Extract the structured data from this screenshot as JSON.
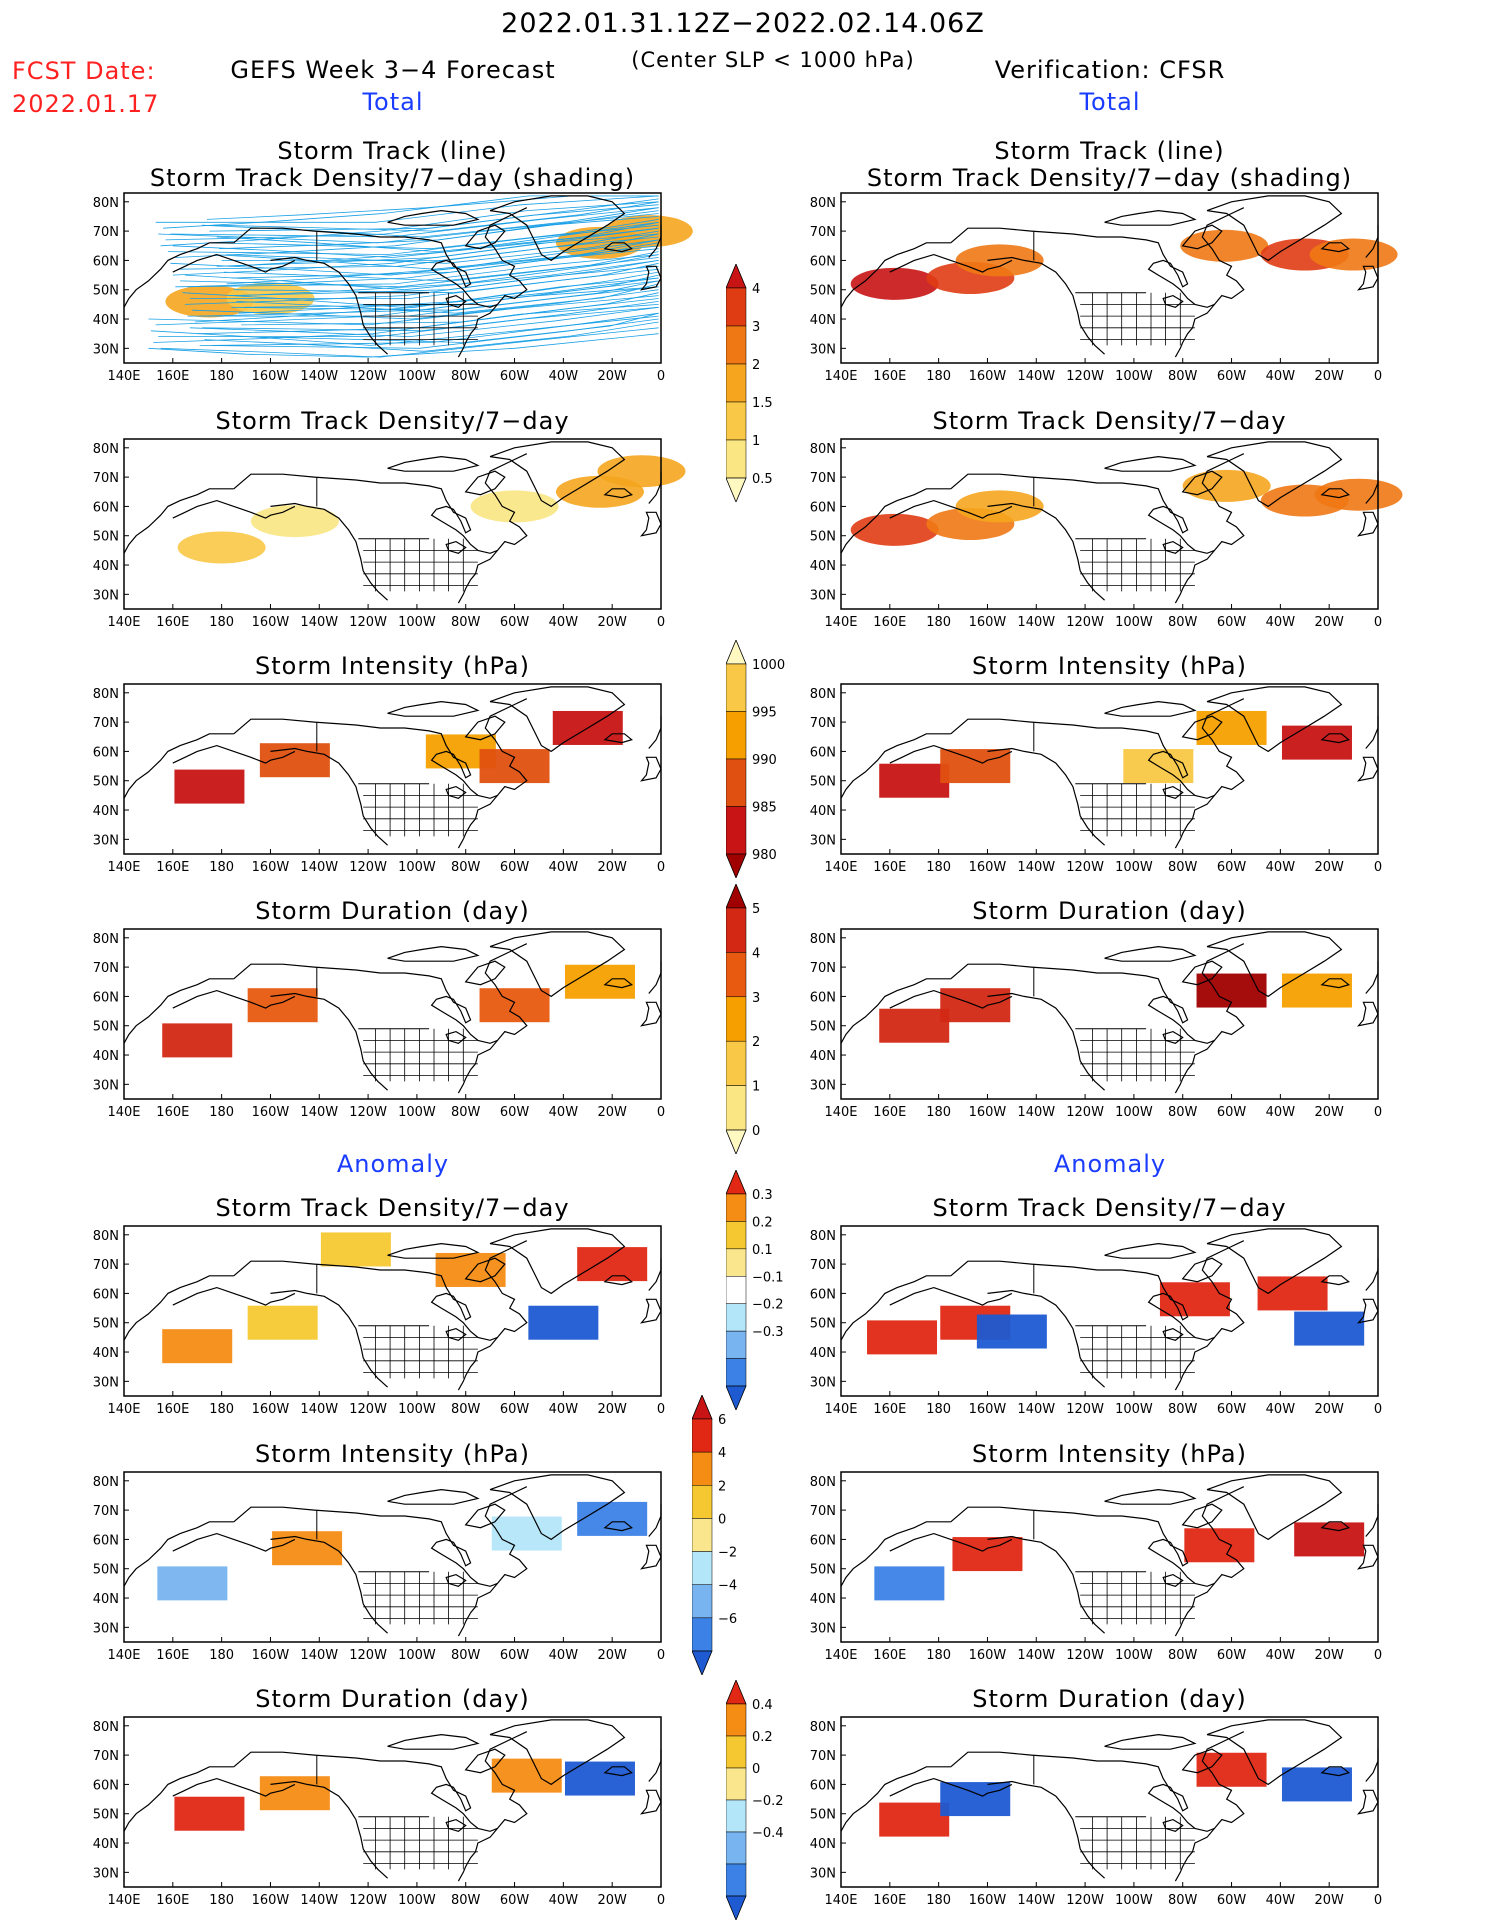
{
  "header": {
    "period": "2022.01.31.12Z−2022.02.14.06Z",
    "criterion": "(Center SLP < 1000 hPa)",
    "fcst_label": "FCST Date:",
    "fcst_date": "2022.01.17",
    "left_title": "GEFS Week 3−4 Forecast",
    "right_title": "Verification: CFSR",
    "total_label": "Total",
    "anomaly_label": "Anomaly"
  },
  "panel_titles": {
    "track_line": "Storm Track (line)",
    "track_shading": "Storm Track Density/7−day (shading)",
    "density": "Storm Track Density/7−day",
    "intensity": "Storm Intensity (hPa)",
    "duration": "Storm Duration (day)"
  },
  "axes": {
    "x_ticks": [
      "140E",
      "160E",
      "180",
      "160W",
      "140W",
      "120W",
      "100W",
      "80W",
      "60W",
      "40W",
      "20W",
      "0"
    ],
    "y_ticks": [
      "80N",
      "70N",
      "60N",
      "50N",
      "40N",
      "30N"
    ],
    "lon_range": [
      "140E",
      "0"
    ],
    "lat_range": [
      "25N",
      "83N"
    ]
  },
  "colorbars": {
    "density_total": {
      "labels": [
        "4",
        "3",
        "2",
        "1.5",
        "1",
        "0.5"
      ],
      "colors": [
        "#c81414",
        "#e03c14",
        "#f07814",
        "#f5a51e",
        "#f8c846",
        "#fae682",
        "#fff8c0"
      ]
    },
    "intensity_total": {
      "labels": [
        "1000",
        "995",
        "990",
        "985",
        "980"
      ],
      "colors": [
        "#fff8c0",
        "#f8c846",
        "#f5a000",
        "#e05010",
        "#c81414",
        "#a00000"
      ]
    },
    "duration_total": {
      "labels": [
        "5",
        "4",
        "3",
        "2",
        "1",
        "0"
      ],
      "colors": [
        "#a00000",
        "#d22814",
        "#e85a10",
        "#f5a000",
        "#f8c846",
        "#fae682",
        "#fff8c0"
      ]
    },
    "density_anom": {
      "labels": [
        "0.3",
        "0.2",
        "0.1",
        "−0.1",
        "−0.2",
        "−0.3"
      ],
      "colors": [
        "#e02814",
        "#f58c14",
        "#f5c832",
        "#fae68c",
        "#ffffff",
        "#b4e6fa",
        "#78b4f0",
        "#3c82e6",
        "#1e5ad2"
      ]
    },
    "intensity_anom": {
      "labels": [
        "6",
        "4",
        "2",
        "0",
        "−2",
        "−4",
        "−6"
      ],
      "colors": [
        "#c81414",
        "#e02814",
        "#f58c14",
        "#f5c832",
        "#fae68c",
        "#b4e6fa",
        "#78b4f0",
        "#3c82e6",
        "#1e5ad2"
      ]
    },
    "duration_anom": {
      "labels": [
        "0.4",
        "0.2",
        "0",
        "−0.2",
        "−0.4"
      ],
      "colors": [
        "#e02814",
        "#f58c14",
        "#f5c832",
        "#fae68c",
        "#b4e6fa",
        "#78b4f0",
        "#3c82e6",
        "#1e5ad2"
      ]
    }
  },
  "chart_data": [
    {
      "id": "gefs-track",
      "type": "heatmap",
      "title": "Storm Track (line) / Storm Track Density/7−day (shading)",
      "source": "GEFS",
      "mode": "total",
      "features": [
        {
          "kind": "blob",
          "lon": 175,
          "lat": 46,
          "value": 1.5
        },
        {
          "kind": "blob",
          "lon": 200,
          "lat": 47,
          "value": 1.2
        },
        {
          "kind": "blob",
          "lon": 335,
          "lat": 66,
          "value": 1.5
        },
        {
          "kind": "blob",
          "lon": 355,
          "lat": 70,
          "value": 1.5
        }
      ],
      "tracks": "dense ensemble storm tracks across North Pacific and North Atlantic"
    },
    {
      "id": "cfsr-track",
      "type": "heatmap",
      "title": "Storm Track (line) / Storm Track Density/7−day (shading)",
      "source": "CFSR",
      "mode": "total",
      "features": [
        {
          "kind": "blob",
          "lon": 162,
          "lat": 52,
          "value": 4
        },
        {
          "kind": "blob",
          "lon": 193,
          "lat": 54,
          "value": 3
        },
        {
          "kind": "blob",
          "lon": 205,
          "lat": 60,
          "value": 2
        },
        {
          "kind": "blob",
          "lon": 297,
          "lat": 65,
          "value": 2
        },
        {
          "kind": "blob",
          "lon": 330,
          "lat": 62,
          "value": 3
        },
        {
          "kind": "blob",
          "lon": 350,
          "lat": 62,
          "value": 2
        }
      ]
    },
    {
      "id": "gefs-density",
      "type": "heatmap",
      "title": "Storm Track Density/7−day",
      "source": "GEFS",
      "mode": "total",
      "features": [
        {
          "kind": "blob",
          "lon": 180,
          "lat": 46,
          "value": 1.0
        },
        {
          "kind": "blob",
          "lon": 210,
          "lat": 55,
          "value": 0.8
        },
        {
          "kind": "blob",
          "lon": 300,
          "lat": 60,
          "value": 0.6
        },
        {
          "kind": "blob",
          "lon": 335,
          "lat": 65,
          "value": 1.5
        },
        {
          "kind": "blob",
          "lon": 352,
          "lat": 72,
          "value": 1.5
        }
      ]
    },
    {
      "id": "cfsr-density",
      "type": "heatmap",
      "title": "Storm Track Density/7−day",
      "source": "CFSR",
      "mode": "total",
      "features": [
        {
          "kind": "blob",
          "lon": 162,
          "lat": 52,
          "value": 3
        },
        {
          "kind": "blob",
          "lon": 193,
          "lat": 54,
          "value": 2
        },
        {
          "kind": "blob",
          "lon": 205,
          "lat": 60,
          "value": 1.5
        },
        {
          "kind": "blob",
          "lon": 298,
          "lat": 67,
          "value": 1.5
        },
        {
          "kind": "blob",
          "lon": 330,
          "lat": 62,
          "value": 2
        },
        {
          "kind": "blob",
          "lon": 352,
          "lat": 64,
          "value": 2
        }
      ]
    },
    {
      "id": "gefs-intensity",
      "type": "heatmap",
      "title": "Storm Intensity (hPa)",
      "source": "GEFS",
      "mode": "total",
      "features": [
        {
          "kind": "blob",
          "lon": 175,
          "lat": 48,
          "value": 980
        },
        {
          "kind": "blob",
          "lon": 210,
          "lat": 57,
          "value": 988
        },
        {
          "kind": "blob",
          "lon": 278,
          "lat": 60,
          "value": 992
        },
        {
          "kind": "blob",
          "lon": 300,
          "lat": 55,
          "value": 985
        },
        {
          "kind": "blob",
          "lon": 330,
          "lat": 68,
          "value": 980
        }
      ]
    },
    {
      "id": "cfsr-intensity",
      "type": "heatmap",
      "title": "Storm Intensity (hPa)",
      "source": "CFSR",
      "mode": "total",
      "features": [
        {
          "kind": "blob",
          "lon": 170,
          "lat": 50,
          "value": 980
        },
        {
          "kind": "blob",
          "lon": 195,
          "lat": 55,
          "value": 985
        },
        {
          "kind": "blob",
          "lon": 270,
          "lat": 55,
          "value": 995
        },
        {
          "kind": "blob",
          "lon": 300,
          "lat": 68,
          "value": 990
        },
        {
          "kind": "blob",
          "lon": 335,
          "lat": 63,
          "value": 980
        }
      ]
    },
    {
      "id": "gefs-duration",
      "type": "heatmap",
      "title": "Storm Duration (day)",
      "source": "GEFS",
      "mode": "total",
      "features": [
        {
          "kind": "blob",
          "lon": 170,
          "lat": 45,
          "value": 4
        },
        {
          "kind": "blob",
          "lon": 205,
          "lat": 57,
          "value": 3
        },
        {
          "kind": "blob",
          "lon": 300,
          "lat": 57,
          "value": 3
        },
        {
          "kind": "blob",
          "lon": 335,
          "lat": 65,
          "value": 2
        }
      ]
    },
    {
      "id": "cfsr-duration",
      "type": "heatmap",
      "title": "Storm Duration (day)",
      "source": "CFSR",
      "mode": "total",
      "features": [
        {
          "kind": "blob",
          "lon": 170,
          "lat": 50,
          "value": 4
        },
        {
          "kind": "blob",
          "lon": 195,
          "lat": 57,
          "value": 4
        },
        {
          "kind": "blob",
          "lon": 300,
          "lat": 62,
          "value": 5
        },
        {
          "kind": "blob",
          "lon": 335,
          "lat": 62,
          "value": 2
        }
      ]
    },
    {
      "id": "gefs-density-anom",
      "type": "heatmap",
      "title": "Storm Track Density/7−day",
      "source": "GEFS",
      "mode": "anomaly",
      "features": [
        {
          "kind": "blob",
          "lon": 170,
          "lat": 42,
          "value": 0.25
        },
        {
          "kind": "blob",
          "lon": 205,
          "lat": 50,
          "value": 0.15
        },
        {
          "kind": "blob",
          "lon": 235,
          "lat": 75,
          "value": 0.1
        },
        {
          "kind": "blob",
          "lon": 282,
          "lat": 68,
          "value": 0.2
        },
        {
          "kind": "blob",
          "lon": 340,
          "lat": 70,
          "value": 0.3
        },
        {
          "kind": "blob",
          "lon": 320,
          "lat": 50,
          "value": -0.3
        }
      ]
    },
    {
      "id": "cfsr-density-anom",
      "type": "heatmap",
      "title": "Storm Track Density/7−day",
      "source": "CFSR",
      "mode": "anomaly",
      "features": [
        {
          "kind": "blob",
          "lon": 165,
          "lat": 45,
          "value": 0.3
        },
        {
          "kind": "blob",
          "lon": 195,
          "lat": 50,
          "value": 0.3
        },
        {
          "kind": "blob",
          "lon": 210,
          "lat": 47,
          "value": -0.3
        },
        {
          "kind": "blob",
          "lon": 285,
          "lat": 58,
          "value": 0.3
        },
        {
          "kind": "blob",
          "lon": 325,
          "lat": 60,
          "value": 0.3
        },
        {
          "kind": "blob",
          "lon": 340,
          "lat": 48,
          "value": -0.3
        }
      ]
    },
    {
      "id": "gefs-intensity-anom",
      "type": "heatmap",
      "title": "Storm Intensity (hPa)",
      "source": "GEFS",
      "mode": "anomaly",
      "features": [
        {
          "kind": "blob",
          "lon": 168,
          "lat": 45,
          "value": -4
        },
        {
          "kind": "blob",
          "lon": 215,
          "lat": 57,
          "value": 3
        },
        {
          "kind": "blob",
          "lon": 305,
          "lat": 62,
          "value": -2
        },
        {
          "kind": "blob",
          "lon": 340,
          "lat": 67,
          "value": -6
        }
      ]
    },
    {
      "id": "cfsr-intensity-anom",
      "type": "heatmap",
      "title": "Storm Intensity (hPa)",
      "source": "CFSR",
      "mode": "anomaly",
      "features": [
        {
          "kind": "blob",
          "lon": 168,
          "lat": 45,
          "value": -6
        },
        {
          "kind": "blob",
          "lon": 200,
          "lat": 55,
          "value": 5
        },
        {
          "kind": "blob",
          "lon": 295,
          "lat": 58,
          "value": 4
        },
        {
          "kind": "blob",
          "lon": 340,
          "lat": 60,
          "value": 6
        }
      ]
    },
    {
      "id": "gefs-duration-anom",
      "type": "heatmap",
      "title": "Storm Duration (day)",
      "source": "GEFS",
      "mode": "anomaly",
      "features": [
        {
          "kind": "blob",
          "lon": 175,
          "lat": 50,
          "value": 0.4
        },
        {
          "kind": "blob",
          "lon": 210,
          "lat": 57,
          "value": 0.2
        },
        {
          "kind": "blob",
          "lon": 305,
          "lat": 63,
          "value": 0.3
        },
        {
          "kind": "blob",
          "lon": 335,
          "lat": 62,
          "value": -0.4
        }
      ]
    },
    {
      "id": "cfsr-duration-anom",
      "type": "heatmap",
      "title": "Storm Duration (day)",
      "source": "CFSR",
      "mode": "anomaly",
      "features": [
        {
          "kind": "blob",
          "lon": 170,
          "lat": 48,
          "value": 0.4
        },
        {
          "kind": "blob",
          "lon": 195,
          "lat": 55,
          "value": -0.4
        },
        {
          "kind": "blob",
          "lon": 300,
          "lat": 65,
          "value": 0.4
        },
        {
          "kind": "blob",
          "lon": 335,
          "lat": 60,
          "value": -0.4
        }
      ]
    }
  ]
}
